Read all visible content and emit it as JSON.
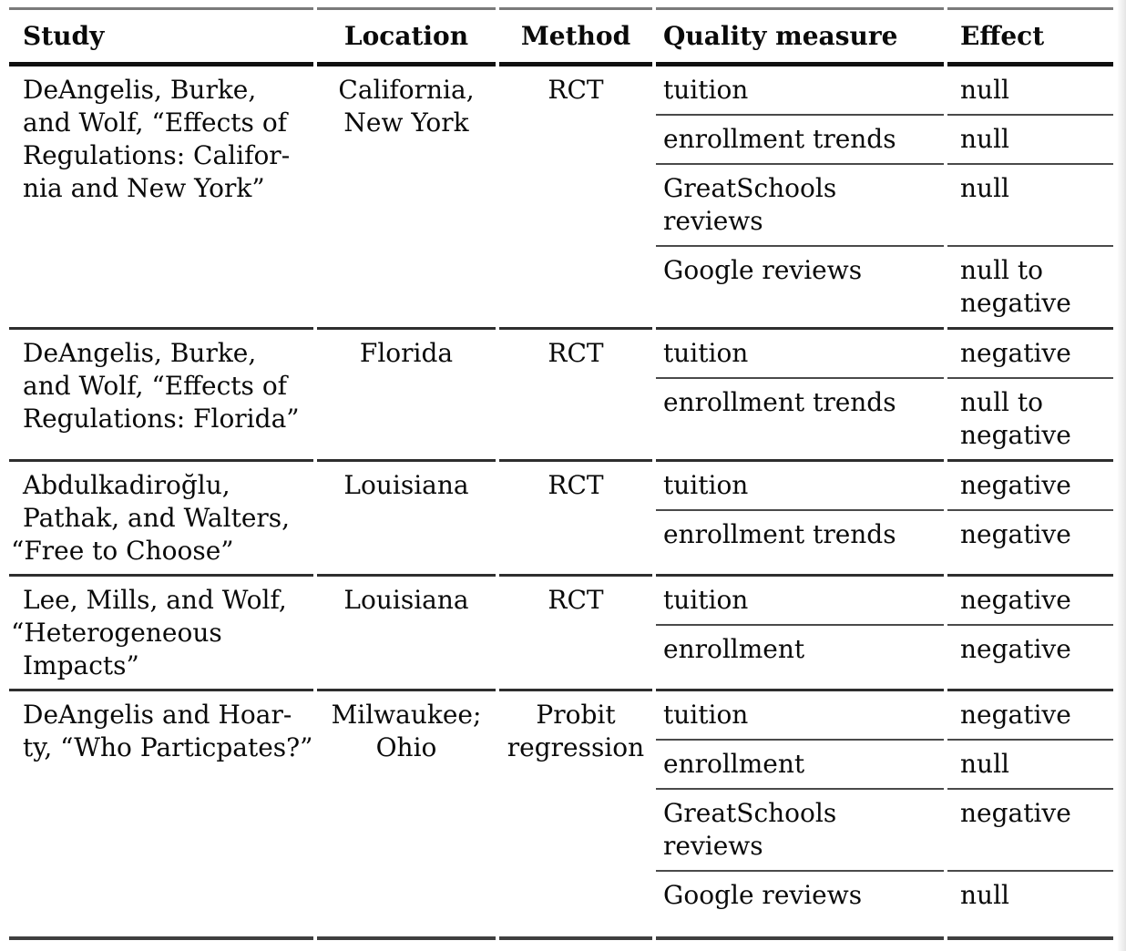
{
  "table": {
    "header": {
      "columns": [
        {
          "id": "study",
          "label": "Study"
        },
        {
          "id": "location",
          "label": "Location"
        },
        {
          "id": "method",
          "label": "Method"
        },
        {
          "id": "quality",
          "label": "Quality measure"
        },
        {
          "id": "effect",
          "label": "Effect"
        }
      ]
    },
    "groups": [
      {
        "study_lines": [
          "DeAngelis, Burke,",
          "and Wolf, “Effects of",
          "Regulations: Califor-",
          "nia and New York”"
        ],
        "location_lines": [
          "California,",
          "New York"
        ],
        "method_lines": [
          "RCT"
        ],
        "rows": [
          {
            "quality_lines": [
              "tuition"
            ],
            "effect_lines": [
              "null"
            ]
          },
          {
            "quality_lines": [
              "enrollment trends"
            ],
            "effect_lines": [
              "null"
            ]
          },
          {
            "quality_lines": [
              "GreatSchools",
              "reviews"
            ],
            "effect_lines": [
              "null"
            ]
          },
          {
            "quality_lines": [
              "Google reviews"
            ],
            "effect_lines": [
              "null to",
              "negative"
            ]
          }
        ]
      },
      {
        "study_lines": [
          "DeAngelis, Burke,",
          "and Wolf, “Effects of",
          "Regulations: Florida”"
        ],
        "location_lines": [
          "Florida"
        ],
        "method_lines": [
          "RCT"
        ],
        "rows": [
          {
            "quality_lines": [
              "tuition"
            ],
            "effect_lines": [
              "negative"
            ]
          },
          {
            "quality_lines": [
              "enrollment trends"
            ],
            "effect_lines": [
              "null to",
              "negative"
            ]
          }
        ]
      },
      {
        "study_lines": [
          "Abdulkadiroğlu,",
          "Pathak, and Walters,",
          "“Free to Choose”"
        ],
        "location_lines": [
          "Louisiana"
        ],
        "method_lines": [
          "RCT"
        ],
        "rows": [
          {
            "quality_lines": [
              "tuition"
            ],
            "effect_lines": [
              "negative"
            ]
          },
          {
            "quality_lines": [
              "enrollment trends"
            ],
            "effect_lines": [
              "negative"
            ]
          }
        ]
      },
      {
        "study_lines": [
          "Lee, Mills, and Wolf,",
          "“Heterogeneous",
          "Impacts”"
        ],
        "location_lines": [
          "Louisiana"
        ],
        "method_lines": [
          "RCT"
        ],
        "rows": [
          {
            "quality_lines": [
              "tuition"
            ],
            "effect_lines": [
              "negative"
            ]
          },
          {
            "quality_lines": [
              "enrollment"
            ],
            "effect_lines": [
              "negative"
            ]
          }
        ]
      },
      {
        "study_lines": [
          "DeAngelis and Hoar-",
          "ty, “Who Particpates?”"
        ],
        "location_lines": [
          "Milwaukee;",
          "Ohio"
        ],
        "method_lines": [
          "Probit",
          "regression"
        ],
        "rows": [
          {
            "quality_lines": [
              "tuition"
            ],
            "effect_lines": [
              "negative"
            ]
          },
          {
            "quality_lines": [
              "enrollment"
            ],
            "effect_lines": [
              "null"
            ]
          },
          {
            "quality_lines": [
              "GreatSchools",
              "reviews"
            ],
            "effect_lines": [
              "negative"
            ]
          },
          {
            "quality_lines": [
              "Google reviews"
            ],
            "effect_lines": [
              "null"
            ]
          }
        ]
      }
    ]
  },
  "colors": {
    "text": "#0a0a0a",
    "rule_header_heavy": "#101010",
    "rule_top_light": "#7a7a7a",
    "rule_group": "#2e2e2e",
    "rule_subrow": "#4a4a4a",
    "rule_bottom": "#3f3f3f",
    "background": "#ffffff"
  }
}
